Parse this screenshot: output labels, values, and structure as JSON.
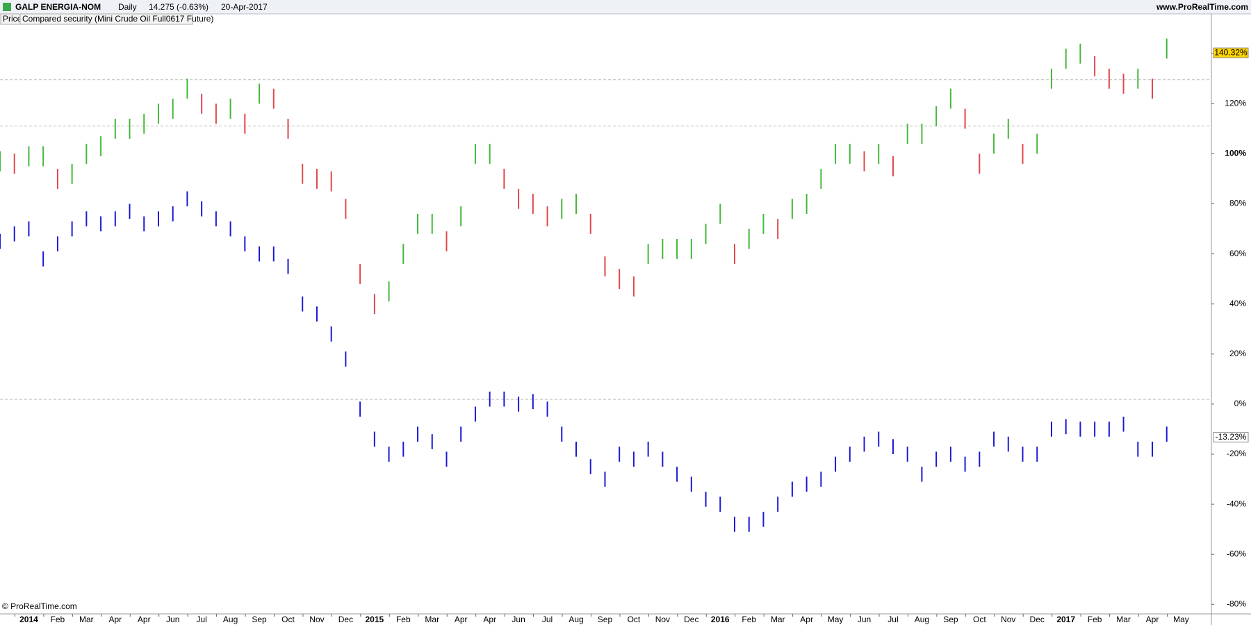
{
  "header": {
    "symbol": "GALP ENERGIA-NOM",
    "period": "Daily",
    "quote": "14.275 (-0.63%)",
    "date": "20-Apr-2017",
    "site": "www.ProRealTime.com"
  },
  "tabs": [
    "Price",
    "Compared security (Mini Crude Oil Full0617 Future)"
  ],
  "footer": "© ProRealTime.com",
  "chart_data": {
    "type": "ohlc",
    "x": [
      -1,
      -0.5,
      0,
      0.5,
      1,
      1.5,
      2,
      2.5,
      3,
      3.5,
      4,
      4.5,
      5,
      5.5,
      6,
      6.5,
      7,
      7.5,
      8,
      8.5,
      9,
      9.5,
      10,
      10.5,
      11,
      11.5,
      12,
      12.5,
      13,
      13.5,
      14,
      14.5,
      15,
      15.5,
      16,
      16.5,
      17,
      17.5,
      18,
      18.5,
      19,
      19.5,
      20,
      20.5,
      21,
      21.5,
      22,
      22.5,
      23,
      23.5,
      24,
      24.5,
      25,
      25.5,
      26,
      26.5,
      27,
      27.5,
      28,
      28.5,
      29,
      29.5,
      30,
      30.5,
      31,
      31.5,
      32,
      32.5,
      33,
      33.5,
      34,
      34.5,
      35,
      35.5,
      36,
      36.5,
      37,
      37.5,
      38,
      38.5,
      39,
      39.5
    ],
    "series": [
      {
        "name": "GALP ENERGIA-NOM",
        "up_color": "#44b83a",
        "down_color": "#e0474c",
        "high": [
          101,
          100,
          103,
          103,
          94,
          96,
          104,
          107,
          114,
          114,
          116,
          120,
          122,
          130,
          124,
          120,
          122,
          116,
          128,
          126,
          114,
          96,
          94,
          93,
          82,
          56,
          44,
          49,
          64,
          76,
          76,
          69,
          79,
          104,
          104,
          94,
          86,
          84,
          79,
          82,
          84,
          76,
          59,
          54,
          51,
          64,
          66,
          66,
          66,
          72,
          80,
          64,
          70,
          76,
          74,
          82,
          84,
          94,
          104,
          104,
          101,
          104,
          99,
          112,
          112,
          119,
          126,
          118,
          100,
          108,
          114,
          104,
          108,
          134,
          142,
          144,
          139,
          134,
          132,
          134,
          130,
          146
        ],
        "low": [
          93,
          92,
          95,
          95,
          86,
          88,
          96,
          99,
          106,
          106,
          108,
          112,
          114,
          122,
          116,
          112,
          114,
          108,
          120,
          118,
          106,
          88,
          86,
          85,
          74,
          48,
          36,
          41,
          56,
          68,
          68,
          61,
          71,
          96,
          96,
          86,
          78,
          76,
          71,
          74,
          76,
          68,
          51,
          46,
          43,
          56,
          58,
          58,
          58,
          64,
          72,
          56,
          62,
          68,
          66,
          74,
          76,
          86,
          96,
          96,
          93,
          96,
          91,
          104,
          104,
          111,
          118,
          110,
          92,
          100,
          106,
          96,
          100,
          126,
          134,
          136,
          131,
          126,
          124,
          126,
          122,
          138
        ],
        "last_value": 140.32,
        "last_label": "140.32%",
        "label_fill": "#ffd400"
      },
      {
        "name": "Mini Crude Oil Full0617 Future",
        "color": "#1a1ad6",
        "high": [
          68,
          71,
          73,
          61,
          67,
          73,
          77,
          75,
          77,
          80,
          75,
          77,
          79,
          85,
          81,
          77,
          73,
          67,
          63,
          63,
          58,
          43,
          39,
          31,
          21,
          1,
          -11,
          -17,
          -15,
          -9,
          -12,
          -19,
          -9,
          -1,
          5,
          5,
          3,
          4,
          1,
          -9,
          -15,
          -22,
          -27,
          -17,
          -19,
          -15,
          -19,
          -25,
          -29,
          -35,
          -37,
          -45,
          -45,
          -43,
          -37,
          -31,
          -29,
          -27,
          -21,
          -17,
          -13,
          -11,
          -14,
          -17,
          -25,
          -19,
          -17,
          -21,
          -19,
          -11,
          -13,
          -17,
          -17,
          -7,
          -6,
          -7,
          -7,
          -7,
          -5,
          -15,
          -15,
          -9
        ],
        "low": [
          62,
          65,
          67,
          55,
          61,
          67,
          71,
          69,
          71,
          74,
          69,
          71,
          73,
          79,
          75,
          71,
          67,
          61,
          57,
          57,
          52,
          37,
          33,
          25,
          15,
          -5,
          -17,
          -23,
          -21,
          -15,
          -18,
          -25,
          -15,
          -7,
          -1,
          -1,
          -3,
          -2,
          -5,
          -15,
          -21,
          -28,
          -33,
          -23,
          -25,
          -21,
          -25,
          -31,
          -35,
          -41,
          -43,
          -51,
          -51,
          -49,
          -43,
          -37,
          -35,
          -33,
          -27,
          -23,
          -19,
          -17,
          -20,
          -23,
          -31,
          -25,
          -23,
          -27,
          -25,
          -17,
          -19,
          -23,
          -23,
          -13,
          -12,
          -13,
          -13,
          -13,
          -11,
          -21,
          -21,
          -15
        ],
        "last_value": -13.23,
        "last_label": "-13.23%",
        "label_fill": "#ffffff"
      }
    ],
    "xlim": [
      -1,
      41.05
    ],
    "xticks": [
      {
        "value": 0,
        "label": "2014"
      },
      {
        "value": 1,
        "label": "Feb"
      },
      {
        "value": 2,
        "label": "Mar"
      },
      {
        "value": 3,
        "label": "Apr"
      },
      {
        "value": 4,
        "label": "Apr"
      },
      {
        "value": 5,
        "label": "Jun"
      },
      {
        "value": 6,
        "label": "Jul"
      },
      {
        "value": 7,
        "label": "Aug"
      },
      {
        "value": 8,
        "label": "Sep"
      },
      {
        "value": 9,
        "label": "Oct"
      },
      {
        "value": 10,
        "label": "Nov"
      },
      {
        "value": 11,
        "label": "Dec"
      },
      {
        "value": 12,
        "label": "2015"
      },
      {
        "value": 13,
        "label": "Feb"
      },
      {
        "value": 14,
        "label": "Mar"
      },
      {
        "value": 15,
        "label": "Apr"
      },
      {
        "value": 16,
        "label": "Apr"
      },
      {
        "value": 17,
        "label": "Jun"
      },
      {
        "value": 18,
        "label": "Jul"
      },
      {
        "value": 19,
        "label": "Aug"
      },
      {
        "value": 20,
        "label": "Sep"
      },
      {
        "value": 21,
        "label": "Oct"
      },
      {
        "value": 22,
        "label": "Nov"
      },
      {
        "value": 23,
        "label": "Dec"
      },
      {
        "value": 24,
        "label": "2016"
      },
      {
        "value": 25,
        "label": "Feb"
      },
      {
        "value": 26,
        "label": "Mar"
      },
      {
        "value": 27,
        "label": "Apr"
      },
      {
        "value": 28,
        "label": "May"
      },
      {
        "value": 29,
        "label": "Jun"
      },
      {
        "value": 30,
        "label": "Jul"
      },
      {
        "value": 31,
        "label": "Aug"
      },
      {
        "value": 32,
        "label": "Sep"
      },
      {
        "value": 33,
        "label": "Oct"
      },
      {
        "value": 34,
        "label": "Nov"
      },
      {
        "value": 35,
        "label": "Dec"
      },
      {
        "value": 36,
        "label": "2017"
      },
      {
        "value": 37,
        "label": "Feb"
      },
      {
        "value": 38,
        "label": "Mar"
      },
      {
        "value": 39,
        "label": "Apr"
      },
      {
        "value": 40,
        "label": "May"
      }
    ],
    "ylim": [
      -83.8,
      155.6
    ],
    "yticks": [
      {
        "value": -80,
        "label": "-80%"
      },
      {
        "value": -60,
        "label": "-60%"
      },
      {
        "value": -40,
        "label": "-40%"
      },
      {
        "value": -20,
        "label": "-20%"
      },
      {
        "value": 0,
        "label": "0%"
      },
      {
        "value": 20,
        "label": "20%"
      },
      {
        "value": 40,
        "label": "40%"
      },
      {
        "value": 60,
        "label": "60%"
      },
      {
        "value": 80,
        "label": "80%"
      },
      {
        "value": 100,
        "label": "100%"
      },
      {
        "value": 120,
        "label": "120%"
      },
      {
        "value": 140,
        "label": "140%"
      }
    ],
    "hlines": [
      129.6,
      111.1,
      1.9
    ]
  }
}
